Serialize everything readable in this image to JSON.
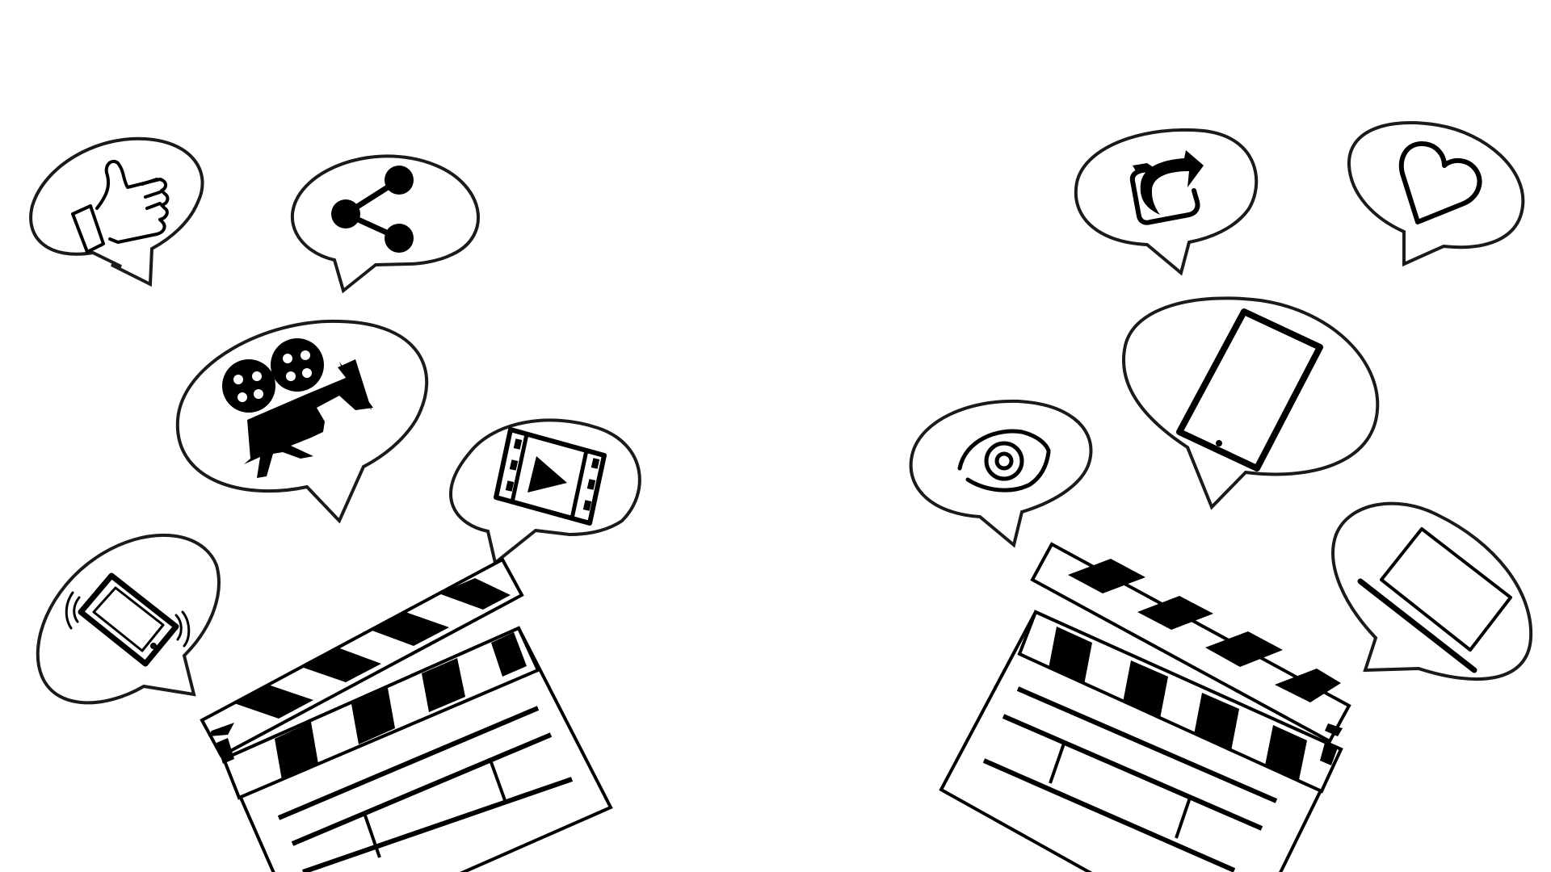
{
  "colors": {
    "background": "#ffffff",
    "ink": "#000000",
    "bubble_outline": "#1a1a1a"
  },
  "illustration": {
    "left_cluster": {
      "clapperboard": "clapperboard-icon",
      "bubbles": [
        {
          "icon": "thumbs-up-icon"
        },
        {
          "icon": "share-icon"
        },
        {
          "icon": "movie-camera-icon"
        },
        {
          "icon": "film-play-icon"
        },
        {
          "icon": "vibrating-phone-icon"
        }
      ]
    },
    "right_cluster": {
      "clapperboard": "clapperboard-icon",
      "bubbles": [
        {
          "icon": "repost-icon"
        },
        {
          "icon": "heart-icon"
        },
        {
          "icon": "tablet-icon"
        },
        {
          "icon": "eye-icon"
        },
        {
          "icon": "laptop-icon"
        }
      ]
    }
  }
}
